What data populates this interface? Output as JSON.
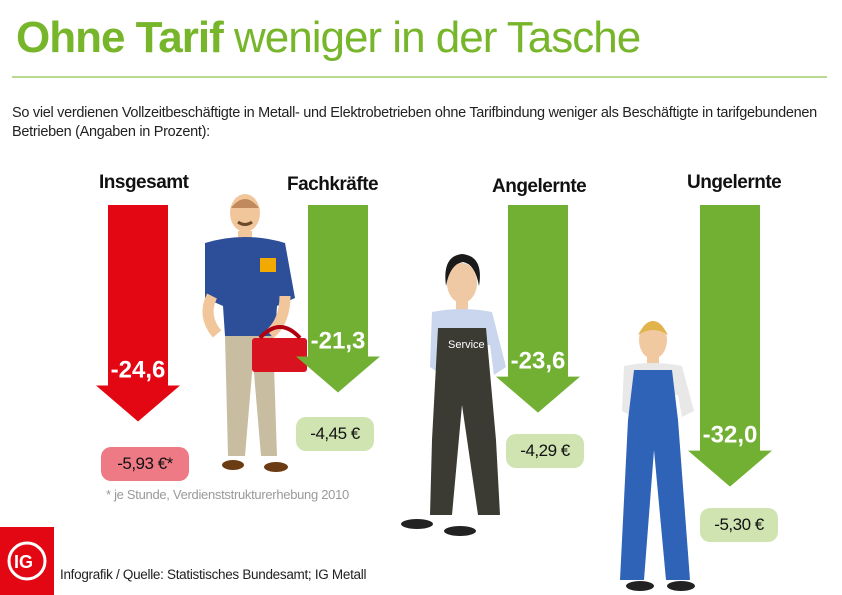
{
  "header": {
    "title_bold": "Ohne Tarif",
    "title_rest": "weniger in der Tasche",
    "subtitle": "So viel verdienen Vollzeitbeschäftigte  in Metall- und Elektrobetrieben ohne Tarifbindung weniger als Beschäftigte in tarifgebundenen Betrieben (Angaben in Prozent):"
  },
  "chart_data": {
    "type": "bar",
    "categories": [
      "Insgesamt",
      "Fachkräfte",
      "Angelernte",
      "Ungelernte"
    ],
    "values": [
      -24.6,
      -21.3,
      -23.6,
      -32.0
    ],
    "value_labels": [
      "-24,6",
      "-21,3",
      "-23,6",
      "-32,0"
    ],
    "hourly_labels": [
      "-5,93 €*",
      "-4,45 €",
      "-4,29 €",
      "-5,30 €"
    ],
    "colors": {
      "Insgesamt": "#e30613",
      "others": "#72b034",
      "pill_red": "#ee7a85",
      "pill_green": "#cfe4b0"
    }
  },
  "figures": {
    "apron_text": "Service"
  },
  "footnote": "* je Stunde, Verdienststrukturerhebung 2010",
  "source": "Infografik / Quelle: Statistisches Bundesamt; IG Metall",
  "logo": {
    "text": "IG"
  }
}
